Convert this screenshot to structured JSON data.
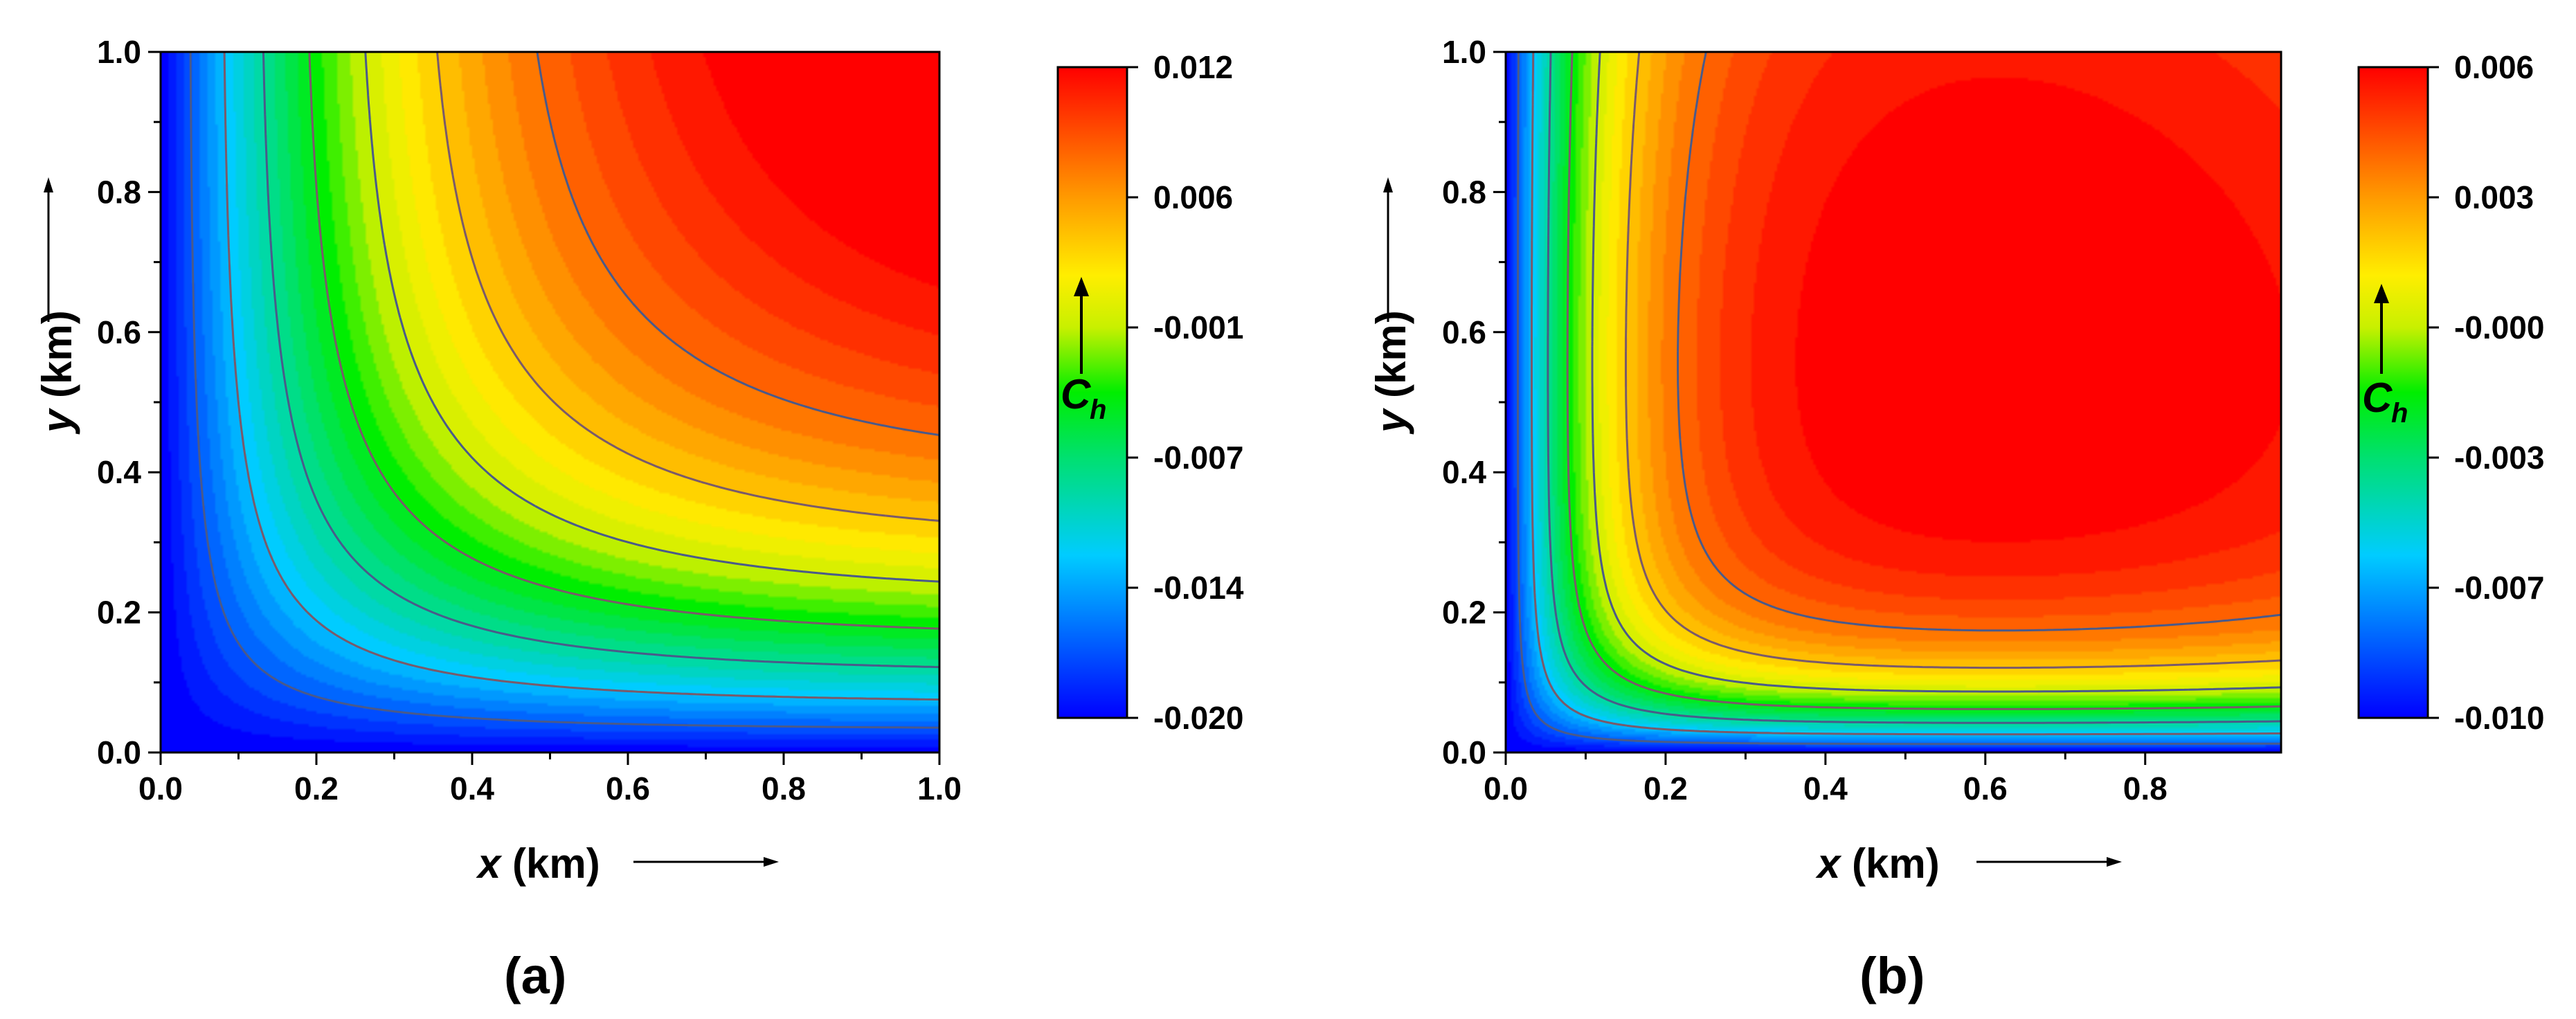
{
  "chart_data": [
    {
      "type": "contour",
      "panel": "(a)",
      "xlabel_var": "x",
      "xlabel_unit": " (km)",
      "ylabel_var": "y",
      "ylabel_unit": " (km)",
      "xlim": [
        0.0,
        1.0
      ],
      "ylim": [
        0.0,
        1.0
      ],
      "x_ticks": [
        0.0,
        0.2,
        0.4,
        0.6,
        0.8,
        1.0
      ],
      "x_tick_labels": [
        "0.0",
        "0.2",
        "0.4",
        "0.6",
        "0.8",
        "1.0"
      ],
      "y_ticks": [
        0.0,
        0.2,
        0.4,
        0.6,
        0.8,
        1.0
      ],
      "y_tick_labels": [
        "0.0",
        "0.2",
        "0.4",
        "0.6",
        "0.8",
        "1.0"
      ],
      "colorbar": {
        "label_main": "C",
        "label_sub": "h",
        "range": [
          -0.02,
          0.012
        ],
        "tick_labels": [
          "0.012",
          "0.006",
          "-0.001",
          "-0.007",
          "-0.014",
          "-0.020"
        ]
      },
      "field_description": "Minimum near x=0 and y=0 edges, increasing toward top-right corner",
      "value_min": -0.02,
      "value_max": 0.012,
      "contour_count": 7
    },
    {
      "type": "contour",
      "panel": "(b)",
      "xlabel_var": "x",
      "xlabel_unit": " (km)",
      "ylabel_var": "y",
      "ylabel_unit": " (km)",
      "xlim": [
        0.0,
        0.97
      ],
      "ylim": [
        0.0,
        1.0
      ],
      "x_ticks": [
        0.0,
        0.2,
        0.4,
        0.6,
        0.8
      ],
      "x_tick_labels": [
        "0.0",
        "0.2",
        "0.4",
        "0.6",
        "0.8"
      ],
      "y_ticks": [
        0.0,
        0.2,
        0.4,
        0.6,
        0.8,
        1.0
      ],
      "y_tick_labels": [
        "0.0",
        "0.2",
        "0.4",
        "0.6",
        "0.8",
        "1.0"
      ],
      "colorbar": {
        "label_main": "C",
        "label_sub": "h",
        "range": [
          -0.01,
          0.006
        ],
        "tick_labels": [
          "0.006",
          "0.003",
          "-0.000",
          "-0.003",
          "-0.007",
          "-0.010"
        ]
      },
      "field_description": "Minimum near x=0 and y=0 edges, plateau maximum over central-right region",
      "value_min": -0.01,
      "value_max": 0.006,
      "contour_count": 7
    }
  ]
}
